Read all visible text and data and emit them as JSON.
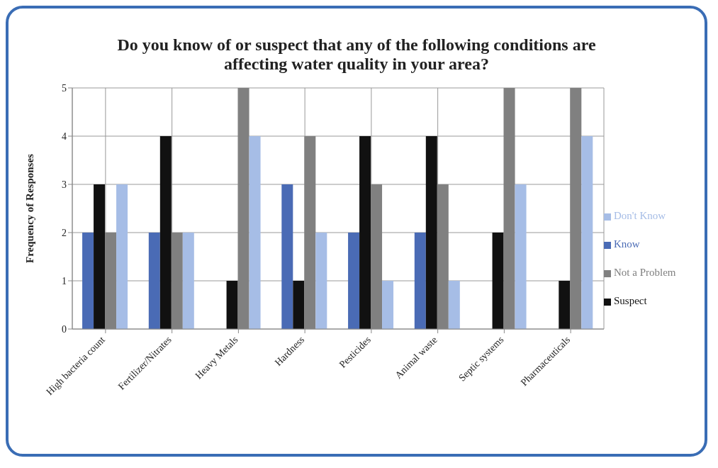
{
  "chart_data": {
    "type": "bar",
    "title": "Do you know of or suspect that any of the following conditions are affecting water quality in your area?",
    "ylabel": "Frequency of Responses",
    "categories": [
      "High bacteria count",
      "Fertilizer/Nitrates",
      "Heavy Metals",
      "Hardness",
      "Pesticides",
      "Animal waste",
      "Septic systems",
      "Pharmaceuticals"
    ],
    "series": [
      {
        "name": "Know",
        "color": "#4a6bb5",
        "values": [
          2,
          2,
          0,
          3,
          2,
          2,
          0,
          0
        ]
      },
      {
        "name": "Suspect",
        "color": "#111111",
        "values": [
          3,
          4,
          1,
          1,
          4,
          4,
          2,
          1
        ]
      },
      {
        "name": "Not a Problem",
        "color": "#808080",
        "values": [
          2,
          2,
          5,
          4,
          3,
          3,
          5,
          5
        ]
      },
      {
        "name": "Don't Know",
        "color": "#a6bde6",
        "values": [
          3,
          2,
          4,
          2,
          1,
          1,
          3,
          4
        ]
      }
    ],
    "ylim": [
      0,
      5
    ],
    "yticks": [
      0,
      1,
      2,
      3,
      4,
      5
    ],
    "grid": true,
    "legend": "right"
  }
}
